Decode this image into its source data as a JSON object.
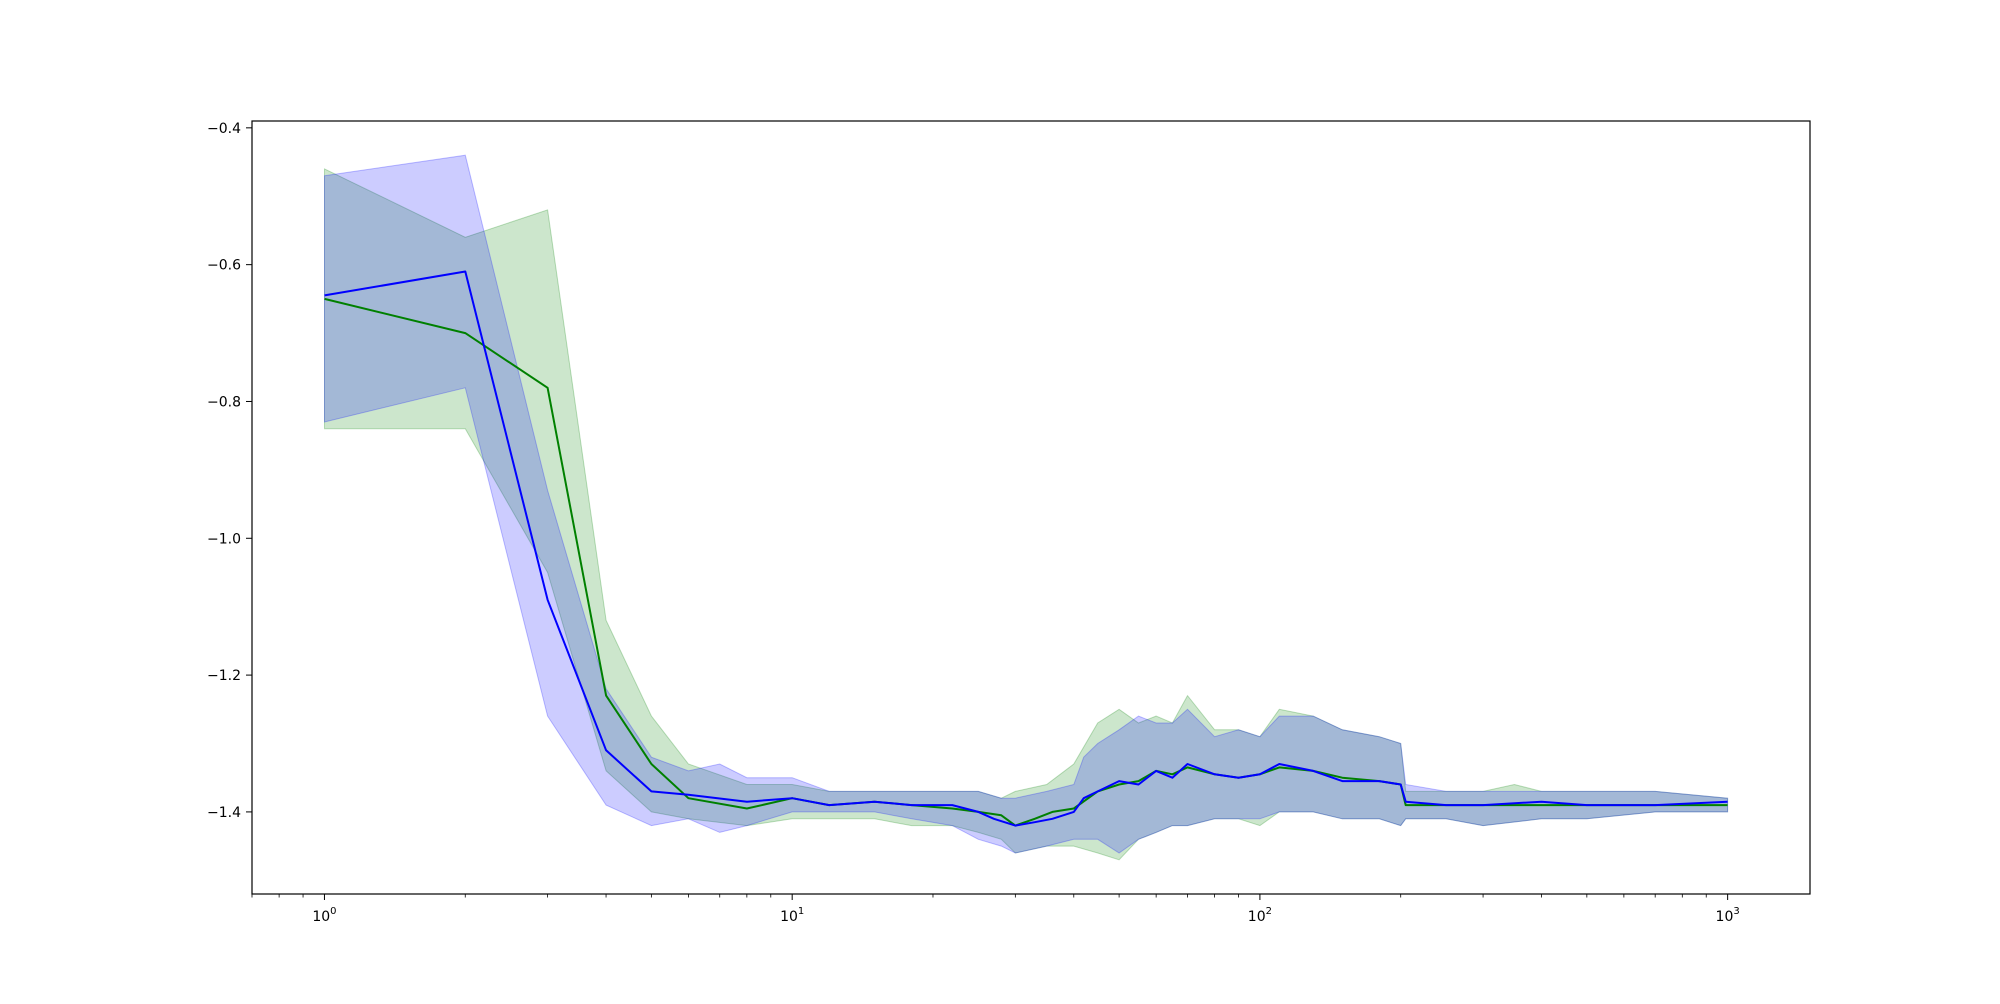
{
  "chart_data": {
    "type": "line",
    "title": "",
    "xlabel": "",
    "ylabel": "",
    "x_scale": "log",
    "xlim": [
      0.7,
      1500
    ],
    "ylim": [
      -1.52,
      -0.39
    ],
    "grid": false,
    "x_ticks": [
      {
        "value": 1,
        "base": "10",
        "exp": "0"
      },
      {
        "value": 10,
        "base": "10",
        "exp": "1"
      },
      {
        "value": 100,
        "base": "10",
        "exp": "2"
      },
      {
        "value": 1000,
        "base": "10",
        "exp": "3"
      }
    ],
    "y_ticks": [
      {
        "value": -0.4,
        "label": "−0.4"
      },
      {
        "value": -0.6,
        "label": "−0.6"
      },
      {
        "value": -0.8,
        "label": "−0.8"
      },
      {
        "value": -1.0,
        "label": "−1.0"
      },
      {
        "value": -1.2,
        "label": "−1.2"
      },
      {
        "value": -1.4,
        "label": "−1.4"
      }
    ],
    "series": [
      {
        "color": "#008000",
        "band_color": "#008000",
        "band_opacity": 0.2,
        "points": [
          [
            1,
            -0.65
          ],
          [
            2,
            -0.7
          ],
          [
            3,
            -0.78
          ],
          [
            4,
            -1.23
          ],
          [
            5,
            -1.33
          ],
          [
            6,
            -1.38
          ],
          [
            8,
            -1.395
          ],
          [
            10,
            -1.38
          ],
          [
            12,
            -1.39
          ],
          [
            15,
            -1.385
          ],
          [
            18,
            -1.39
          ],
          [
            22,
            -1.395
          ],
          [
            25,
            -1.4
          ],
          [
            28,
            -1.405
          ],
          [
            30,
            -1.42
          ],
          [
            33,
            -1.41
          ],
          [
            36,
            -1.4
          ],
          [
            40,
            -1.395
          ],
          [
            45,
            -1.37
          ],
          [
            50,
            -1.36
          ],
          [
            55,
            -1.355
          ],
          [
            60,
            -1.34
          ],
          [
            65,
            -1.345
          ],
          [
            70,
            -1.335
          ],
          [
            80,
            -1.345
          ],
          [
            90,
            -1.35
          ],
          [
            100,
            -1.345
          ],
          [
            110,
            -1.335
          ],
          [
            130,
            -1.34
          ],
          [
            150,
            -1.35
          ],
          [
            180,
            -1.355
          ],
          [
            200,
            -1.36
          ],
          [
            205,
            -1.39
          ],
          [
            250,
            -1.39
          ],
          [
            300,
            -1.39
          ],
          [
            400,
            -1.39
          ],
          [
            500,
            -1.39
          ],
          [
            700,
            -1.39
          ],
          [
            1000,
            -1.39
          ]
        ],
        "upper": [
          [
            1,
            -0.46
          ],
          [
            2,
            -0.56
          ],
          [
            3,
            -0.52
          ],
          [
            4,
            -1.12
          ],
          [
            5,
            -1.26
          ],
          [
            6,
            -1.33
          ],
          [
            8,
            -1.36
          ],
          [
            10,
            -1.36
          ],
          [
            12,
            -1.37
          ],
          [
            15,
            -1.37
          ],
          [
            18,
            -1.37
          ],
          [
            22,
            -1.37
          ],
          [
            25,
            -1.37
          ],
          [
            28,
            -1.38
          ],
          [
            30,
            -1.37
          ],
          [
            35,
            -1.36
          ],
          [
            40,
            -1.33
          ],
          [
            45,
            -1.27
          ],
          [
            50,
            -1.25
          ],
          [
            55,
            -1.27
          ],
          [
            60,
            -1.26
          ],
          [
            65,
            -1.27
          ],
          [
            70,
            -1.23
          ],
          [
            80,
            -1.28
          ],
          [
            90,
            -1.28
          ],
          [
            100,
            -1.29
          ],
          [
            110,
            -1.25
          ],
          [
            130,
            -1.26
          ],
          [
            150,
            -1.28
          ],
          [
            180,
            -1.29
          ],
          [
            200,
            -1.3
          ],
          [
            205,
            -1.37
          ],
          [
            250,
            -1.37
          ],
          [
            300,
            -1.37
          ],
          [
            350,
            -1.36
          ],
          [
            400,
            -1.37
          ],
          [
            500,
            -1.37
          ],
          [
            700,
            -1.37
          ],
          [
            1000,
            -1.38
          ]
        ],
        "lower": [
          [
            1,
            -0.84
          ],
          [
            2,
            -0.84
          ],
          [
            3,
            -1.05
          ],
          [
            4,
            -1.34
          ],
          [
            5,
            -1.4
          ],
          [
            6,
            -1.41
          ],
          [
            8,
            -1.42
          ],
          [
            10,
            -1.41
          ],
          [
            12,
            -1.41
          ],
          [
            15,
            -1.41
          ],
          [
            18,
            -1.42
          ],
          [
            22,
            -1.42
          ],
          [
            25,
            -1.43
          ],
          [
            28,
            -1.44
          ],
          [
            30,
            -1.46
          ],
          [
            35,
            -1.45
          ],
          [
            40,
            -1.45
          ],
          [
            45,
            -1.46
          ],
          [
            50,
            -1.47
          ],
          [
            55,
            -1.44
          ],
          [
            60,
            -1.43
          ],
          [
            65,
            -1.42
          ],
          [
            70,
            -1.42
          ],
          [
            80,
            -1.41
          ],
          [
            90,
            -1.41
          ],
          [
            100,
            -1.42
          ],
          [
            110,
            -1.4
          ],
          [
            130,
            -1.4
          ],
          [
            150,
            -1.41
          ],
          [
            180,
            -1.41
          ],
          [
            200,
            -1.42
          ],
          [
            205,
            -1.41
          ],
          [
            250,
            -1.41
          ],
          [
            300,
            -1.42
          ],
          [
            400,
            -1.41
          ],
          [
            500,
            -1.41
          ],
          [
            700,
            -1.4
          ],
          [
            1000,
            -1.4
          ]
        ]
      },
      {
        "color": "#0000ff",
        "band_color": "#0000ff",
        "band_opacity": 0.2,
        "points": [
          [
            1,
            -0.645
          ],
          [
            2,
            -0.61
          ],
          [
            3,
            -1.09
          ],
          [
            4,
            -1.31
          ],
          [
            5,
            -1.37
          ],
          [
            6,
            -1.375
          ],
          [
            8,
            -1.385
          ],
          [
            10,
            -1.38
          ],
          [
            12,
            -1.39
          ],
          [
            15,
            -1.385
          ],
          [
            18,
            -1.39
          ],
          [
            22,
            -1.39
          ],
          [
            25,
            -1.4
          ],
          [
            27,
            -1.41
          ],
          [
            30,
            -1.42
          ],
          [
            33,
            -1.415
          ],
          [
            36,
            -1.41
          ],
          [
            40,
            -1.4
          ],
          [
            42,
            -1.38
          ],
          [
            45,
            -1.37
          ],
          [
            50,
            -1.355
          ],
          [
            55,
            -1.36
          ],
          [
            60,
            -1.34
          ],
          [
            65,
            -1.35
          ],
          [
            70,
            -1.33
          ],
          [
            80,
            -1.345
          ],
          [
            90,
            -1.35
          ],
          [
            100,
            -1.345
          ],
          [
            110,
            -1.33
          ],
          [
            130,
            -1.34
          ],
          [
            150,
            -1.355
          ],
          [
            180,
            -1.355
          ],
          [
            200,
            -1.36
          ],
          [
            205,
            -1.385
          ],
          [
            250,
            -1.39
          ],
          [
            300,
            -1.39
          ],
          [
            400,
            -1.385
          ],
          [
            500,
            -1.39
          ],
          [
            700,
            -1.39
          ],
          [
            1000,
            -1.385
          ]
        ],
        "upper": [
          [
            1,
            -0.47
          ],
          [
            2,
            -0.44
          ],
          [
            3,
            -0.93
          ],
          [
            4,
            -1.22
          ],
          [
            5,
            -1.32
          ],
          [
            6,
            -1.34
          ],
          [
            7,
            -1.33
          ],
          [
            8,
            -1.35
          ],
          [
            10,
            -1.35
          ],
          [
            12,
            -1.37
          ],
          [
            15,
            -1.37
          ],
          [
            18,
            -1.37
          ],
          [
            22,
            -1.37
          ],
          [
            25,
            -1.37
          ],
          [
            28,
            -1.38
          ],
          [
            30,
            -1.38
          ],
          [
            35,
            -1.37
          ],
          [
            40,
            -1.36
          ],
          [
            42,
            -1.32
          ],
          [
            45,
            -1.3
          ],
          [
            50,
            -1.28
          ],
          [
            55,
            -1.26
          ],
          [
            60,
            -1.27
          ],
          [
            65,
            -1.27
          ],
          [
            70,
            -1.25
          ],
          [
            80,
            -1.29
          ],
          [
            90,
            -1.28
          ],
          [
            100,
            -1.29
          ],
          [
            110,
            -1.26
          ],
          [
            130,
            -1.26
          ],
          [
            150,
            -1.28
          ],
          [
            180,
            -1.29
          ],
          [
            200,
            -1.3
          ],
          [
            205,
            -1.36
          ],
          [
            250,
            -1.37
          ],
          [
            300,
            -1.37
          ],
          [
            400,
            -1.37
          ],
          [
            500,
            -1.37
          ],
          [
            700,
            -1.37
          ],
          [
            1000,
            -1.38
          ]
        ],
        "lower": [
          [
            1,
            -0.83
          ],
          [
            2,
            -0.78
          ],
          [
            3,
            -1.26
          ],
          [
            4,
            -1.39
          ],
          [
            5,
            -1.42
          ],
          [
            6,
            -1.41
          ],
          [
            7,
            -1.43
          ],
          [
            8,
            -1.42
          ],
          [
            10,
            -1.4
          ],
          [
            12,
            -1.4
          ],
          [
            15,
            -1.4
          ],
          [
            18,
            -1.41
          ],
          [
            22,
            -1.42
          ],
          [
            25,
            -1.44
          ],
          [
            28,
            -1.45
          ],
          [
            30,
            -1.46
          ],
          [
            35,
            -1.45
          ],
          [
            40,
            -1.44
          ],
          [
            45,
            -1.44
          ],
          [
            50,
            -1.46
          ],
          [
            55,
            -1.44
          ],
          [
            60,
            -1.43
          ],
          [
            65,
            -1.42
          ],
          [
            70,
            -1.42
          ],
          [
            80,
            -1.41
          ],
          [
            90,
            -1.41
          ],
          [
            100,
            -1.41
          ],
          [
            110,
            -1.4
          ],
          [
            130,
            -1.4
          ],
          [
            150,
            -1.41
          ],
          [
            180,
            -1.41
          ],
          [
            200,
            -1.42
          ],
          [
            205,
            -1.41
          ],
          [
            250,
            -1.41
          ],
          [
            300,
            -1.42
          ],
          [
            400,
            -1.41
          ],
          [
            500,
            -1.41
          ],
          [
            700,
            -1.4
          ],
          [
            1000,
            -1.4
          ]
        ]
      }
    ]
  }
}
